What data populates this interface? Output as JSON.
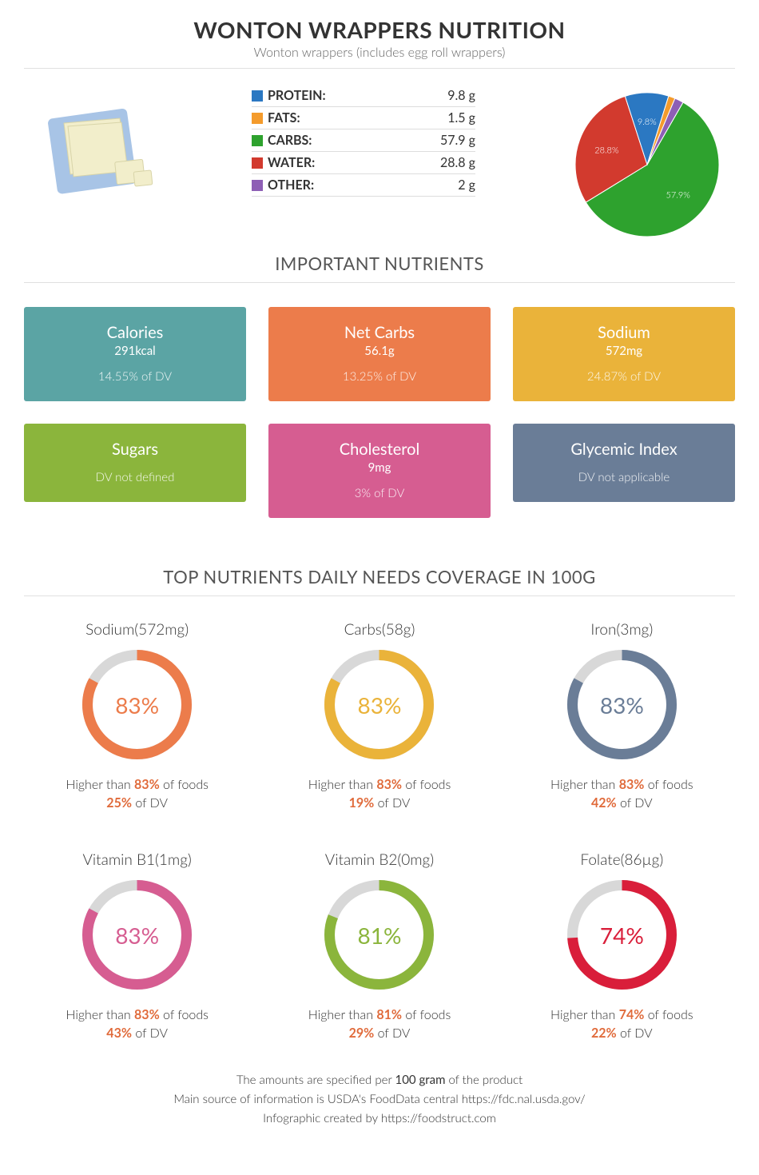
{
  "header": {
    "title": "WONTON WRAPPERS NUTRITION",
    "subtitle": "Wonton wrappers (includes egg roll wrappers)"
  },
  "macros": {
    "rows": [
      {
        "label": "PROTEIN:",
        "value": "9.8 g",
        "color": "#2b78c2",
        "pct": 9.8
      },
      {
        "label": "FATS:",
        "value": "1.5 g",
        "color": "#f49b2c",
        "pct": 1.5
      },
      {
        "label": "CARBS:",
        "value": "57.9 g",
        "color": "#2ea22e",
        "pct": 57.9
      },
      {
        "label": "WATER:",
        "value": "28.8 g",
        "color": "#d23a2e",
        "pct": 28.8
      },
      {
        "label": "OTHER:",
        "value": "2 g",
        "color": "#8e5fb5",
        "pct": 2.0
      }
    ],
    "pie_labels": [
      {
        "text": "57.9%",
        "series": 2
      },
      {
        "text": "28.8%",
        "series": 3
      },
      {
        "text": "9.8%",
        "series": 0
      }
    ]
  },
  "sections": {
    "important": "IMPORTANT NUTRIENTS",
    "coverage": "TOP NUTRIENTS DAILY NEEDS COVERAGE IN 100G"
  },
  "nutrient_cards": [
    {
      "title": "Calories",
      "amount": "291kcal",
      "dv": "14.55% of DV",
      "bg": "#5ba4a4"
    },
    {
      "title": "Net Carbs",
      "amount": "56.1g",
      "dv": "13.25% of DV",
      "bg": "#ec7c4b"
    },
    {
      "title": "Sodium",
      "amount": "572mg",
      "dv": "24.87% of DV",
      "bg": "#eab33a"
    },
    {
      "title": "Sugars",
      "amount": "",
      "dv": "DV not defined",
      "bg": "#8bb53c"
    },
    {
      "title": "Cholesterol",
      "amount": "9mg",
      "dv": "3% of DV",
      "bg": "#d65d91"
    },
    {
      "title": "Glycemic Index",
      "amount": "",
      "dv": "DV not applicable",
      "bg": "#6a7d97"
    }
  ],
  "coverage": [
    {
      "title": "Sodium(572mg)",
      "pct": 83,
      "color": "#ec7c4b",
      "dv": "25%"
    },
    {
      "title": "Carbs(58g)",
      "pct": 83,
      "color": "#eab33a",
      "dv": "19%"
    },
    {
      "title": "Iron(3mg)",
      "pct": 83,
      "color": "#6a7d97",
      "dv": "42%"
    },
    {
      "title": "Vitamin B1(1mg)",
      "pct": 83,
      "color": "#d65d91",
      "dv": "43%"
    },
    {
      "title": "Vitamin B2(0mg)",
      "pct": 81,
      "color": "#8bb53c",
      "dv": "29%"
    },
    {
      "title": "Folate(86µg)",
      "pct": 74,
      "color": "#d91e3a",
      "dv": "22%"
    }
  ],
  "coverage_track_color": "#d8d8d8",
  "coverage_accent_color": "#e06a3a",
  "coverage_text": {
    "higher_prefix": "Higher than ",
    "higher_suffix": " of foods",
    "dv_suffix": " of DV"
  },
  "footer": {
    "line1_pre": "The amounts are specified per ",
    "line1_bold": "100 gram",
    "line1_post": " of the product",
    "line2": "Main source of information is USDA's FoodData central https://fdc.nal.usda.gov/",
    "line3": "Infographic created by https://foodstruct.com"
  },
  "food_image": {
    "plate_color": "#a8c4e6",
    "wrapper_fill": "#f2eecb",
    "wrapper_stroke": "#d8d4a8"
  }
}
